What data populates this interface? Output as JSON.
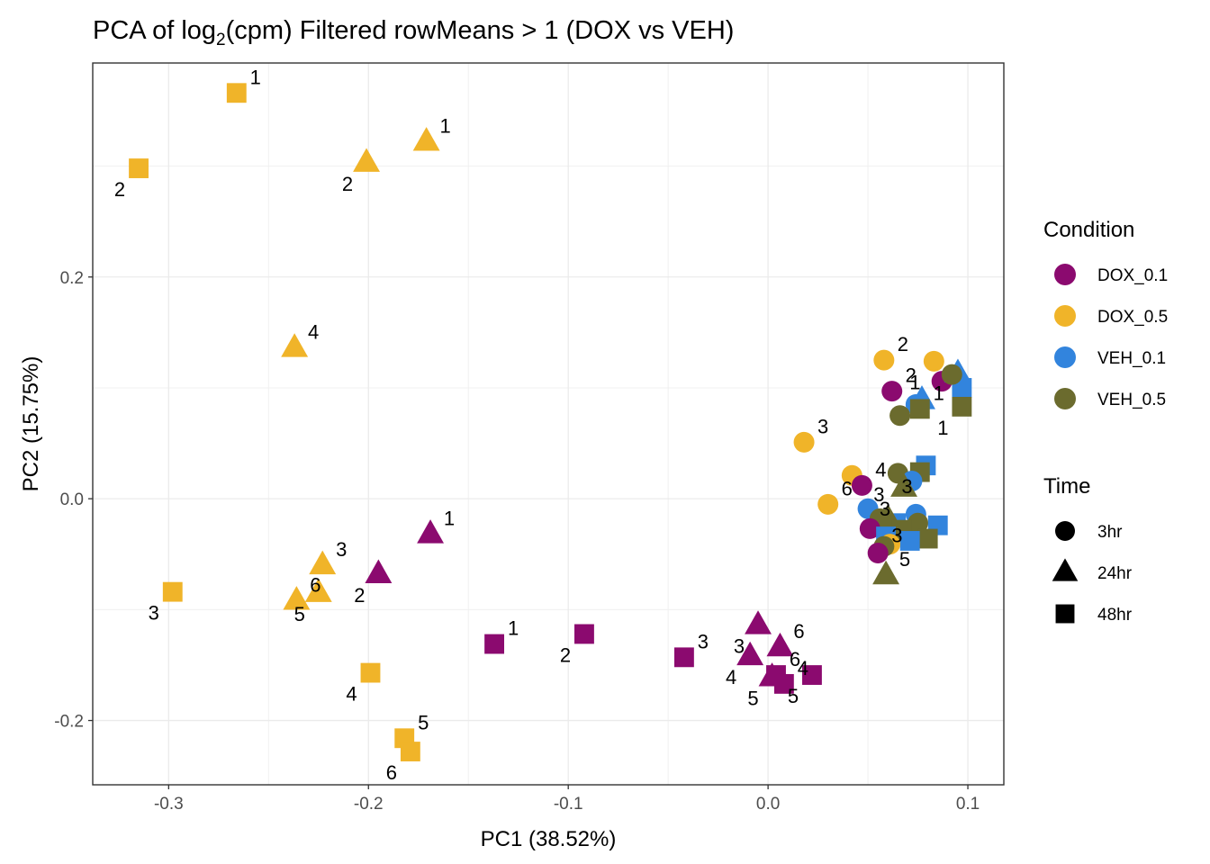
{
  "chart_data": {
    "type": "scatter",
    "title_main": "PCA of log",
    "title_sub": "2",
    "title_rest": "(cpm) Filtered rowMeans > 1 (DOX vs VEH)",
    "xlabel": "PC1 (38.52%)",
    "ylabel": "PC2 (15.75%)",
    "xlim": [
      -0.338,
      0.118
    ],
    "ylim": [
      -0.258,
      0.393
    ],
    "x_ticks": [
      -0.3,
      -0.2,
      -0.1,
      0.0,
      0.1
    ],
    "x_tick_labels": [
      "-0.3",
      "-0.2",
      "-0.1",
      "0.0",
      "0.1"
    ],
    "y_ticks": [
      -0.2,
      0.0,
      0.2
    ],
    "y_tick_labels": [
      "-0.2",
      "0.0",
      "0.2"
    ],
    "grid": true,
    "legend_placement": "right",
    "legend_condition": {
      "title": "Condition",
      "items": [
        {
          "name": "DOX_0.1",
          "color": "#8b0a6f"
        },
        {
          "name": "DOX_0.5",
          "color": "#f0b429"
        },
        {
          "name": "VEH_0.1",
          "color": "#3284dd"
        },
        {
          "name": "VEH_0.5",
          "color": "#6b6b2e"
        }
      ]
    },
    "legend_time": {
      "title": "Time",
      "items": [
        {
          "name": "3hr",
          "shape": "circle"
        },
        {
          "name": "24hr",
          "shape": "triangle"
        },
        {
          "name": "48hr",
          "shape": "square"
        }
      ]
    },
    "points": [
      {
        "cond": "DOX_0.5",
        "time": "48hr",
        "x": -0.266,
        "y": 0.366,
        "label": "1"
      },
      {
        "cond": "DOX_0.5",
        "time": "48hr",
        "x": -0.315,
        "y": 0.298,
        "label": "2"
      },
      {
        "cond": "DOX_0.5",
        "time": "24hr",
        "x": -0.171,
        "y": 0.322,
        "label": "1"
      },
      {
        "cond": "DOX_0.5",
        "time": "24hr",
        "x": -0.201,
        "y": 0.303,
        "label": "2"
      },
      {
        "cond": "DOX_0.5",
        "time": "24hr",
        "x": -0.237,
        "y": 0.136,
        "label": "4"
      },
      {
        "cond": "DOX_0.5",
        "time": "48hr",
        "x": -0.298,
        "y": -0.084,
        "label": "3"
      },
      {
        "cond": "DOX_0.5",
        "time": "24hr",
        "x": -0.223,
        "y": -0.06,
        "label": "3"
      },
      {
        "cond": "DOX_0.5",
        "time": "24hr",
        "x": -0.225,
        "y": -0.085,
        "label": "5"
      },
      {
        "cond": "DOX_0.5",
        "time": "24hr",
        "x": -0.236,
        "y": -0.092,
        "label": "6"
      },
      {
        "cond": "DOX_0.5",
        "time": "48hr",
        "x": -0.199,
        "y": -0.157,
        "label": "4"
      },
      {
        "cond": "DOX_0.5",
        "time": "48hr",
        "x": -0.182,
        "y": -0.216,
        "label": "5"
      },
      {
        "cond": "DOX_0.5",
        "time": "48hr",
        "x": -0.179,
        "y": -0.228,
        "label": "6"
      },
      {
        "cond": "DOX_0.1",
        "time": "24hr",
        "x": -0.169,
        "y": -0.032,
        "label": "1"
      },
      {
        "cond": "DOX_0.1",
        "time": "24hr",
        "x": -0.195,
        "y": -0.068,
        "label": "2"
      },
      {
        "cond": "DOX_0.1",
        "time": "48hr",
        "x": -0.137,
        "y": -0.131,
        "label": "1"
      },
      {
        "cond": "DOX_0.1",
        "time": "48hr",
        "x": -0.092,
        "y": -0.122,
        "label": "2"
      },
      {
        "cond": "DOX_0.1",
        "time": "48hr",
        "x": -0.042,
        "y": -0.143,
        "label": "3"
      },
      {
        "cond": "DOX_0.1",
        "time": "24hr",
        "x": -0.005,
        "y": -0.114,
        "label": "3"
      },
      {
        "cond": "DOX_0.1",
        "time": "24hr",
        "x": 0.006,
        "y": -0.134,
        "label": "6"
      },
      {
        "cond": "DOX_0.1",
        "time": "24hr",
        "x": -0.009,
        "y": -0.142,
        "label": "4"
      },
      {
        "cond": "DOX_0.1",
        "time": "48hr",
        "x": 0.004,
        "y": -0.159,
        "label": "6"
      },
      {
        "cond": "DOX_0.1",
        "time": "48hr",
        "x": 0.022,
        "y": -0.159,
        "label": "5"
      },
      {
        "cond": "DOX_0.1",
        "time": "48hr",
        "x": 0.008,
        "y": -0.167,
        "label": "4"
      },
      {
        "cond": "DOX_0.1",
        "time": "24hr",
        "x": 0.002,
        "y": -0.161,
        "label": "5"
      },
      {
        "cond": "DOX_0.5",
        "time": "3hr",
        "x": 0.058,
        "y": 0.125,
        "label": "2"
      },
      {
        "cond": "DOX_0.5",
        "time": "3hr",
        "x": 0.083,
        "y": 0.124,
        "label": "1"
      },
      {
        "cond": "DOX_0.1",
        "time": "3hr",
        "x": 0.062,
        "y": 0.097,
        "label": "2"
      },
      {
        "cond": "DOX_0.1",
        "time": "3hr",
        "x": 0.087,
        "y": 0.106,
        "label": ""
      },
      {
        "cond": "VEH_0.1",
        "time": "24hr",
        "x": 0.095,
        "y": 0.113,
        "label": ""
      },
      {
        "cond": "VEH_0.1",
        "time": "48hr",
        "x": 0.097,
        "y": 0.1,
        "label": ""
      },
      {
        "cond": "VEH_0.5",
        "time": "3hr",
        "x": 0.092,
        "y": 0.112,
        "label": ""
      },
      {
        "cond": "VEH_0.5",
        "time": "48hr",
        "x": 0.097,
        "y": 0.083,
        "label": "1"
      },
      {
        "cond": "VEH_0.1",
        "time": "3hr",
        "x": 0.074,
        "y": 0.085,
        "label": ""
      },
      {
        "cond": "VEH_0.1",
        "time": "24hr",
        "x": 0.077,
        "y": 0.089,
        "label": ""
      },
      {
        "cond": "VEH_0.5",
        "time": "48hr",
        "x": 0.076,
        "y": 0.081,
        "label": "1"
      },
      {
        "cond": "VEH_0.5",
        "time": "3hr",
        "x": 0.066,
        "y": 0.075,
        "label": ""
      },
      {
        "cond": "DOX_0.5",
        "time": "3hr",
        "x": 0.018,
        "y": 0.051,
        "label": "3"
      },
      {
        "cond": "VEH_0.1",
        "time": "48hr",
        "x": 0.079,
        "y": 0.03,
        "label": "3"
      },
      {
        "cond": "VEH_0.5",
        "time": "48hr",
        "x": 0.076,
        "y": 0.024,
        "label": ""
      },
      {
        "cond": "VEH_0.5",
        "time": "3hr",
        "x": 0.065,
        "y": 0.023,
        "label": "3"
      },
      {
        "cond": "DOX_0.5",
        "time": "3hr",
        "x": 0.042,
        "y": 0.021,
        "label": ""
      },
      {
        "cond": "VEH_0.1",
        "time": "3hr",
        "x": 0.072,
        "y": 0.016,
        "label": ""
      },
      {
        "cond": "DOX_0.1",
        "time": "3hr",
        "x": 0.047,
        "y": 0.012,
        "label": "4"
      },
      {
        "cond": "VEH_0.5",
        "time": "24hr",
        "x": 0.068,
        "y": 0.01,
        "label": "3"
      },
      {
        "cond": "DOX_0.5",
        "time": "3hr",
        "x": 0.03,
        "y": -0.005,
        "label": "6"
      },
      {
        "cond": "VEH_0.1",
        "time": "3hr",
        "x": 0.074,
        "y": -0.014,
        "label": "3"
      },
      {
        "cond": "VEH_0.1",
        "time": "3hr",
        "x": 0.05,
        "y": -0.009,
        "label": ""
      },
      {
        "cond": "VEH_0.5",
        "time": "3hr",
        "x": 0.056,
        "y": -0.018,
        "label": ""
      },
      {
        "cond": "VEH_0.1",
        "time": "48hr",
        "x": 0.064,
        "y": -0.022,
        "label": ""
      },
      {
        "cond": "VEH_0.5",
        "time": "24hr",
        "x": 0.06,
        "y": -0.018,
        "label": ""
      },
      {
        "cond": "DOX_0.1",
        "time": "3hr",
        "x": 0.051,
        "y": -0.027,
        "label": ""
      },
      {
        "cond": "VEH_0.5",
        "time": "3hr",
        "x": 0.075,
        "y": -0.022,
        "label": ""
      },
      {
        "cond": "VEH_0.1",
        "time": "48hr",
        "x": 0.085,
        "y": -0.024,
        "label": ""
      },
      {
        "cond": "VEH_0.5",
        "time": "48hr",
        "x": 0.067,
        "y": -0.028,
        "label": ""
      },
      {
        "cond": "VEH_0.1",
        "time": "48hr",
        "x": 0.059,
        "y": -0.034,
        "label": ""
      },
      {
        "cond": "VEH_0.5",
        "time": "48hr",
        "x": 0.08,
        "y": -0.036,
        "label": ""
      },
      {
        "cond": "VEH_0.1",
        "time": "48hr",
        "x": 0.071,
        "y": -0.038,
        "label": ""
      },
      {
        "cond": "DOX_0.5",
        "time": "3hr",
        "x": 0.061,
        "y": -0.041,
        "label": ""
      },
      {
        "cond": "VEH_0.5",
        "time": "3hr",
        "x": 0.058,
        "y": -0.043,
        "label": ""
      },
      {
        "cond": "DOX_0.1",
        "time": "3hr",
        "x": 0.055,
        "y": -0.049,
        "label": ""
      },
      {
        "cond": "VEH_0.5",
        "time": "24hr",
        "x": 0.059,
        "y": -0.069,
        "label": "5"
      }
    ]
  }
}
